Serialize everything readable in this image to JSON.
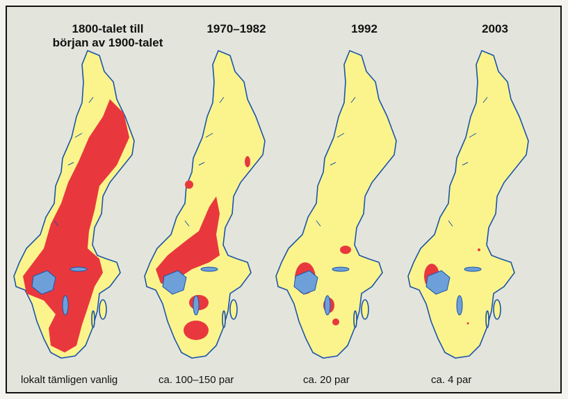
{
  "maps": [
    {
      "title": [
        "1800-talet till",
        "början av 1900-talet"
      ],
      "caption": "lokalt tämligen vanlig"
    },
    {
      "title": [
        "1970–1982"
      ],
      "caption": "ca. 100–150 par"
    },
    {
      "title": [
        "1992"
      ],
      "caption": "ca. 20 par"
    },
    {
      "title": [
        "2003"
      ],
      "caption": "ca. 4 par"
    }
  ]
}
